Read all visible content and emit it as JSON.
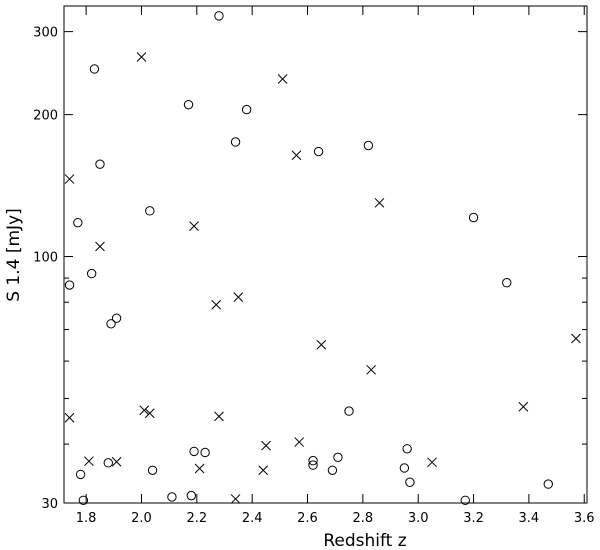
{
  "chart_data": {
    "type": "scatter",
    "xlabel": "Redshift  z",
    "ylabel": "S 1.4 [mJy]",
    "xlim": [
      1.72,
      3.61
    ],
    "ylim": [
      30,
      340
    ],
    "y_scale": "log",
    "grid": false,
    "x_ticks": [
      "1.8",
      "2.0",
      "2.2",
      "2.4",
      "2.6",
      "2.8",
      "3.0",
      "3.2",
      "3.4",
      "3.6"
    ],
    "x_tick_values": [
      1.8,
      2.0,
      2.2,
      2.4,
      2.6,
      2.8,
      3.0,
      3.2,
      3.4,
      3.6
    ],
    "y_ticks": [
      "30",
      "100",
      "200",
      "300"
    ],
    "y_tick_values": [
      30,
      100,
      200,
      300
    ],
    "y_minor_ticks": [
      40,
      50,
      60,
      70,
      80,
      90
    ],
    "series": [
      {
        "marker": "circle",
        "x": [
          1.74,
          1.77,
          1.78,
          1.79,
          1.82,
          1.83,
          1.85,
          1.88,
          1.89,
          1.91,
          2.03,
          2.04,
          2.11,
          2.17,
          2.18,
          2.19,
          2.23,
          2.28,
          2.34,
          2.38,
          2.62,
          2.62,
          2.64,
          2.69,
          2.71,
          2.75,
          2.82,
          2.95,
          2.96,
          2.97,
          3.17,
          3.2,
          3.32,
          3.47
        ],
        "y": [
          87,
          118,
          34.5,
          30.4,
          92,
          250,
          157,
          36.5,
          72,
          74,
          125,
          35.2,
          30.9,
          210,
          31.1,
          38.6,
          38.4,
          324,
          175,
          205,
          36.9,
          36.1,
          167,
          35.2,
          37.5,
          47,
          172,
          35.6,
          39.1,
          33.2,
          30.4,
          121,
          88,
          32.9
        ]
      },
      {
        "marker": "x",
        "x": [
          1.74,
          1.74,
          1.81,
          1.85,
          1.91,
          2.0,
          2.01,
          2.03,
          2.19,
          2.21,
          2.27,
          2.28,
          2.34,
          2.35,
          2.44,
          2.45,
          2.51,
          2.56,
          2.57,
          2.65,
          2.83,
          2.86,
          3.05,
          3.38,
          3.57
        ],
        "y": [
          146,
          45.5,
          36.8,
          105,
          36.7,
          265,
          47.2,
          46.5,
          116,
          35.5,
          79,
          45.8,
          30.6,
          82,
          35.2,
          39.7,
          238,
          164,
          40.4,
          65,
          57.5,
          130,
          36.6,
          48,
          67
        ]
      }
    ]
  }
}
